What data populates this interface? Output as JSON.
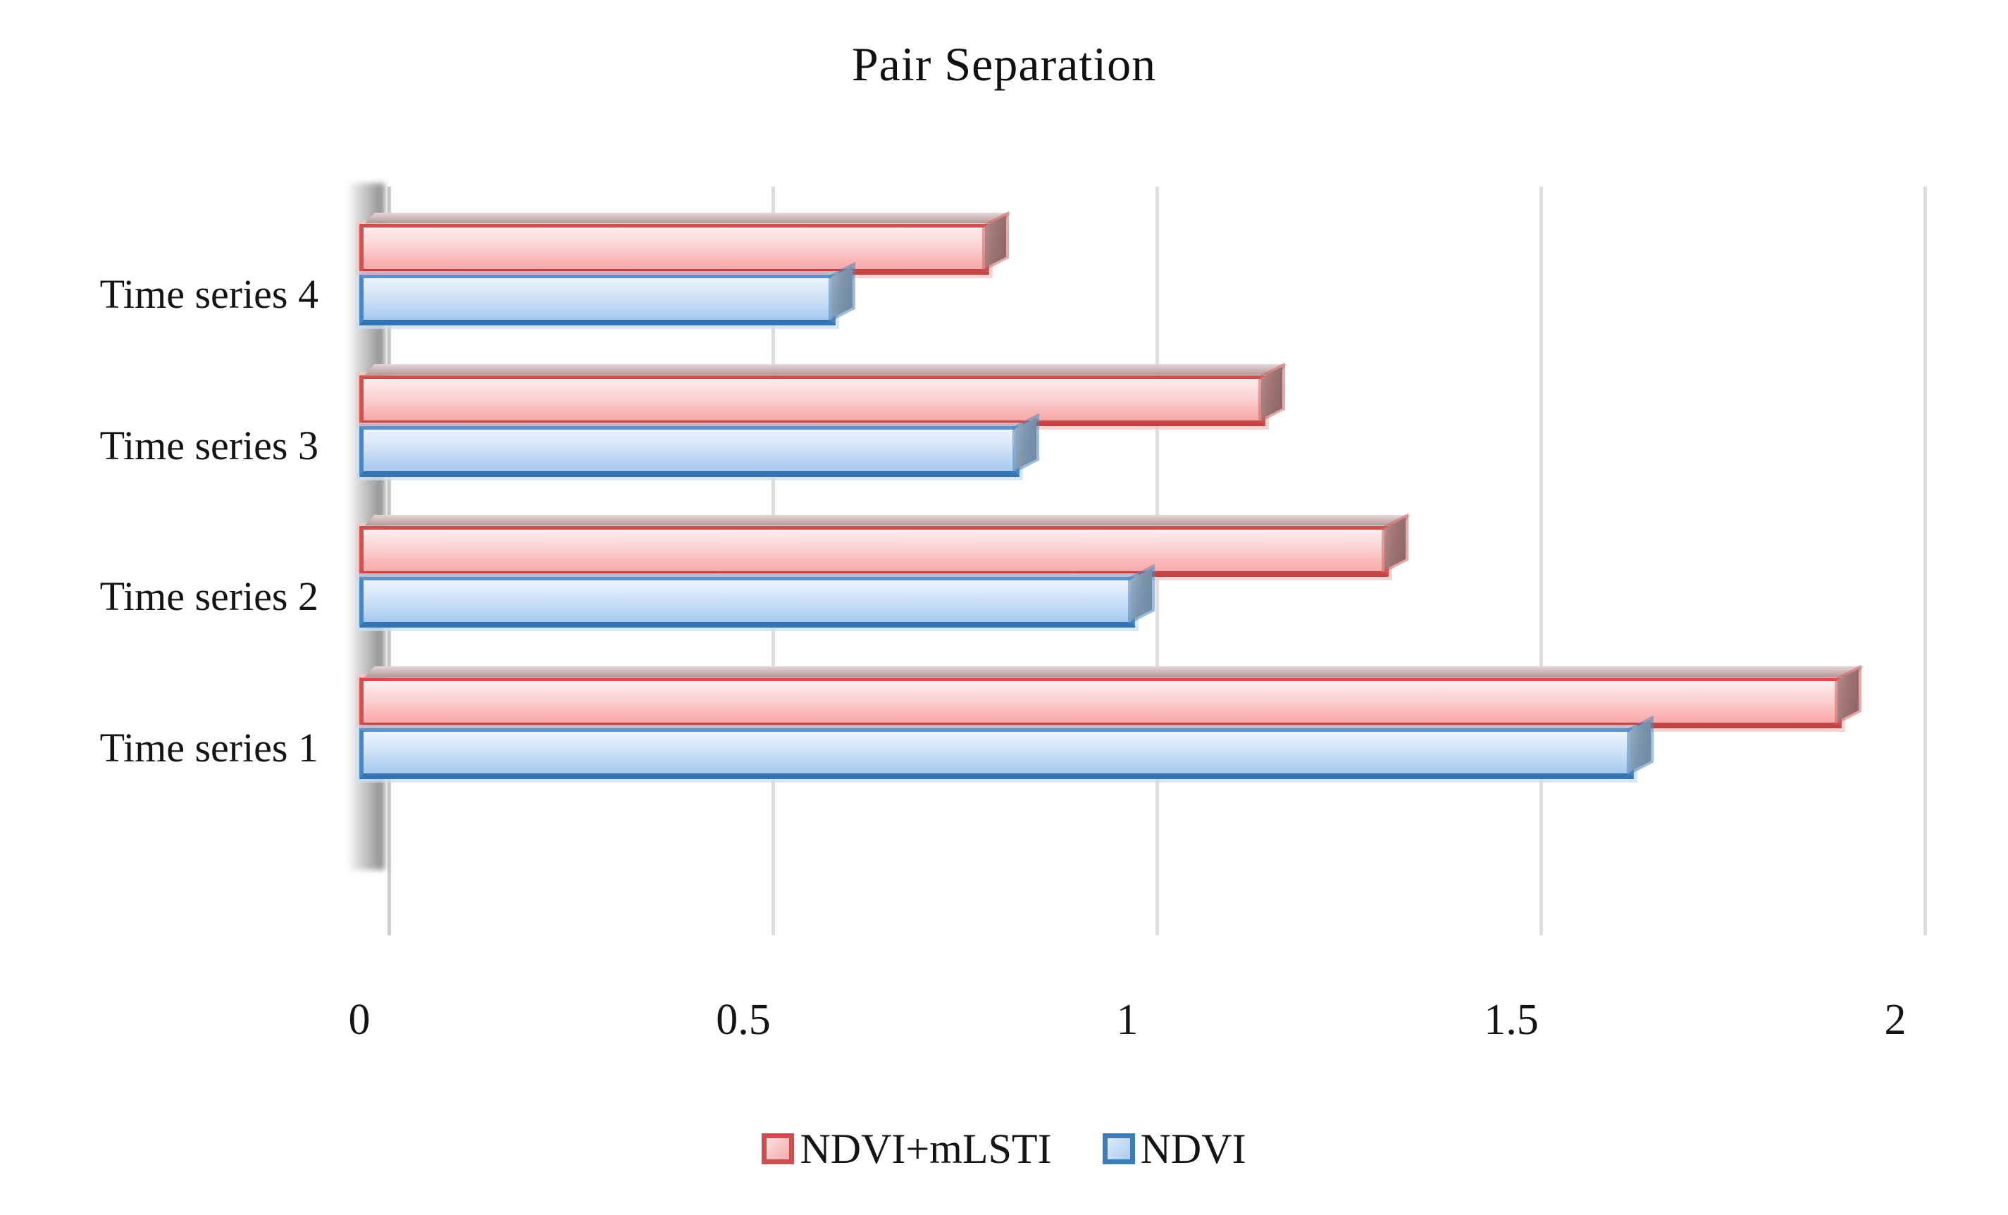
{
  "title": "Pair Separation",
  "chart_data": {
    "type": "bar",
    "orientation": "horizontal",
    "title": "Pair Separation",
    "categories_top_to_bottom": [
      "Time series 4",
      "Time series 3",
      "Time series 2",
      "Time series 1"
    ],
    "series": [
      {
        "name": "NDVI+mLSTI",
        "border_color": "#d15151",
        "fill_color": "#f9b4b4",
        "values_top_to_bottom": [
          0.82,
          1.18,
          1.34,
          1.93
        ]
      },
      {
        "name": "NDVI",
        "border_color": "#4a86c4",
        "fill_color": "#b1d0f2",
        "values_top_to_bottom": [
          0.62,
          0.86,
          1.01,
          1.66
        ]
      }
    ],
    "xlim": [
      0,
      2
    ],
    "xticks": [
      "0",
      "0.5",
      "1",
      "1.5",
      "2"
    ],
    "grid": true,
    "grid_color": "#dddddd",
    "legend_position": "bottom",
    "style": "3d-bevel"
  },
  "legend": {
    "items": [
      {
        "label": "NDVI+mLSTI",
        "color_key": "red"
      },
      {
        "label": "NDVI",
        "color_key": "blue"
      }
    ]
  }
}
